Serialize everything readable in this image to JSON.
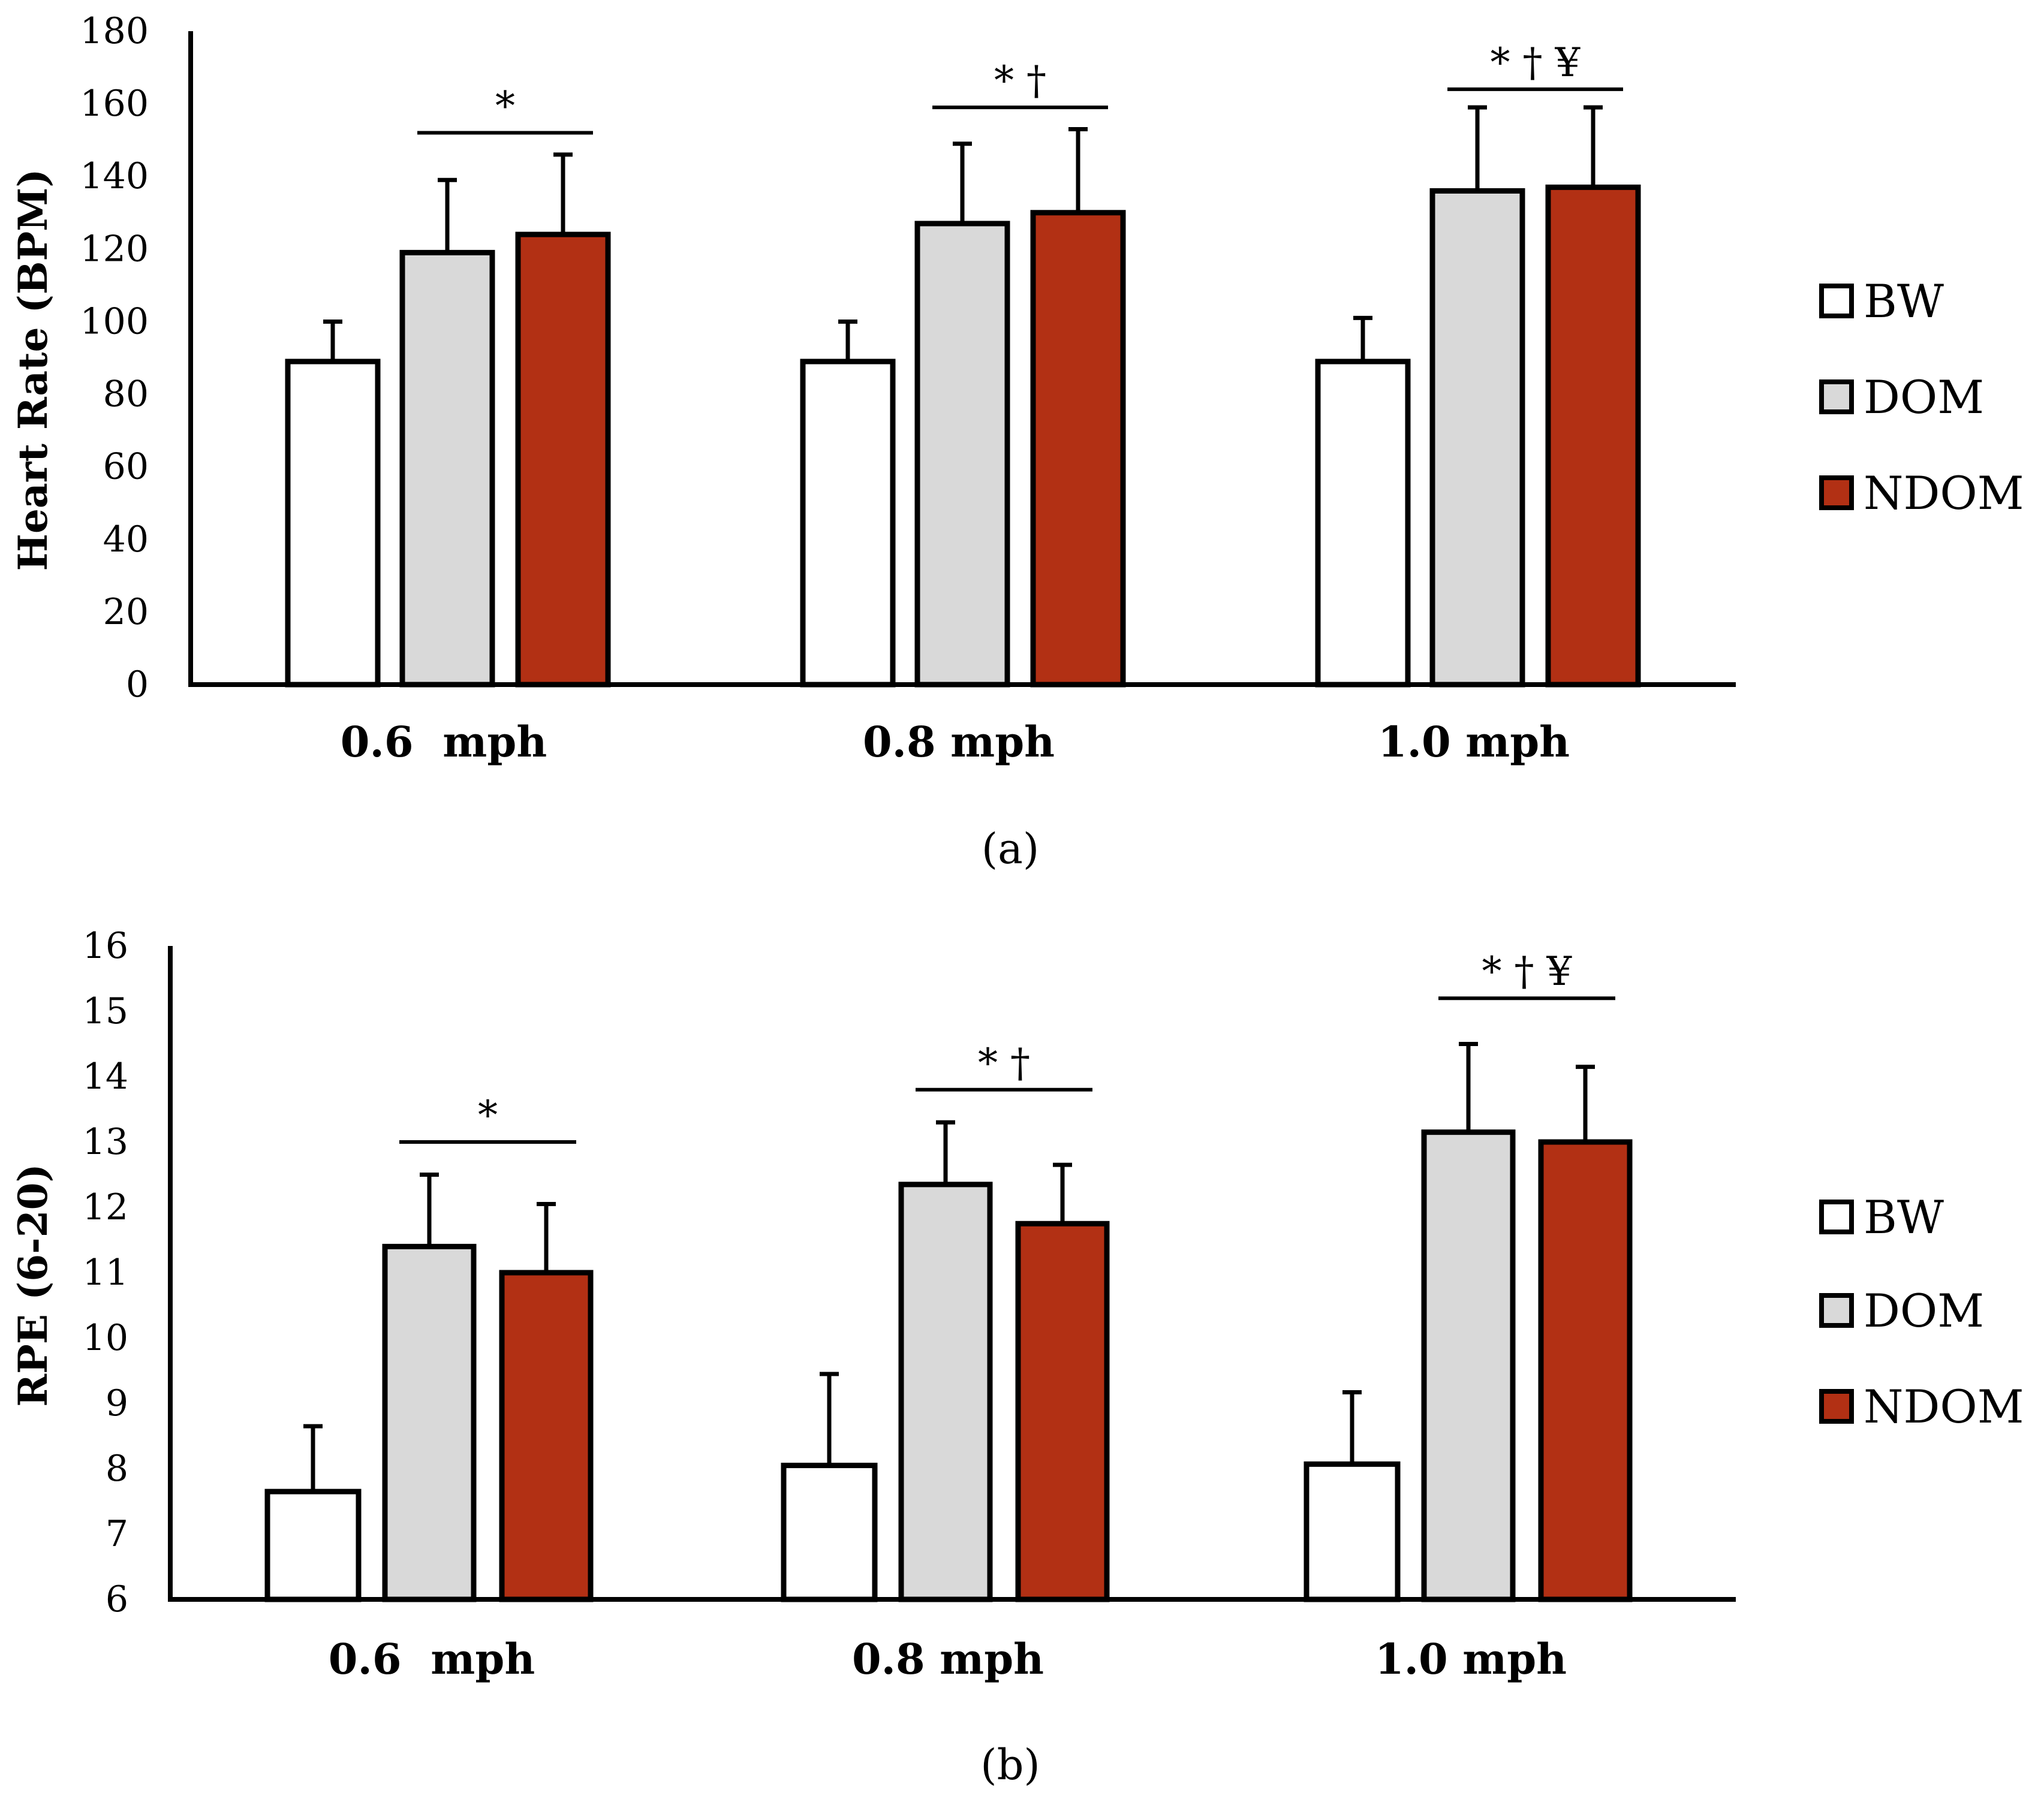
{
  "chart_data": [
    {
      "type": "bar",
      "panel_label": "(a)",
      "categories": [
        "0.6  mph",
        "0.8 mph",
        "1.0 mph"
      ],
      "ylabel": "Heart Rate (BPM)",
      "ylim": [
        0,
        180
      ],
      "yticks": [
        0,
        20,
        40,
        60,
        80,
        100,
        120,
        140,
        160,
        180
      ],
      "series": [
        {
          "name": "BW",
          "color": "#ffffff",
          "values": [
            89,
            89,
            89
          ],
          "errors": [
            11,
            11,
            12
          ]
        },
        {
          "name": "DOM",
          "color": "#d9d9d9",
          "values": [
            119,
            127,
            136
          ],
          "errors": [
            20,
            22,
            23
          ]
        },
        {
          "name": "NDOM",
          "color": "#b23014",
          "values": [
            124,
            130,
            137
          ],
          "errors": [
            22,
            23,
            22
          ]
        }
      ],
      "significance": [
        {
          "category": 0,
          "label": "*",
          "level": 152
        },
        {
          "category": 1,
          "label": "* †",
          "level": 159
        },
        {
          "category": 2,
          "label": "* † ¥",
          "level": 164
        }
      ],
      "legend": [
        "BW",
        "DOM",
        "NDOM"
      ],
      "legend_position": "right"
    },
    {
      "type": "bar",
      "panel_label": "(b)",
      "categories": [
        "0.6  mph",
        "0.8 mph",
        "1.0 mph"
      ],
      "ylabel": "RPE (6-20)",
      "ylim": [
        6,
        16
      ],
      "yticks": [
        6,
        7,
        8,
        9,
        10,
        11,
        12,
        13,
        14,
        15,
        16
      ],
      "series": [
        {
          "name": "BW",
          "color": "#ffffff",
          "values": [
            7.65,
            8.05,
            8.07
          ],
          "errors": [
            1.0,
            1.4,
            1.1
          ]
        },
        {
          "name": "DOM",
          "color": "#d9d9d9",
          "values": [
            11.4,
            12.35,
            13.15
          ],
          "errors": [
            1.1,
            0.95,
            1.35
          ]
        },
        {
          "name": "NDOM",
          "color": "#b23014",
          "values": [
            11.0,
            11.75,
            13.0
          ],
          "errors": [
            1.05,
            0.9,
            1.15
          ]
        }
      ],
      "significance": [
        {
          "category": 0,
          "label": "*",
          "level": 13.0
        },
        {
          "category": 1,
          "label": "* †",
          "level": 13.8
        },
        {
          "category": 2,
          "label": "* † ¥",
          "level": 15.2
        }
      ],
      "legend": [
        "BW",
        "DOM",
        "NDOM"
      ],
      "legend_position": "right"
    }
  ]
}
